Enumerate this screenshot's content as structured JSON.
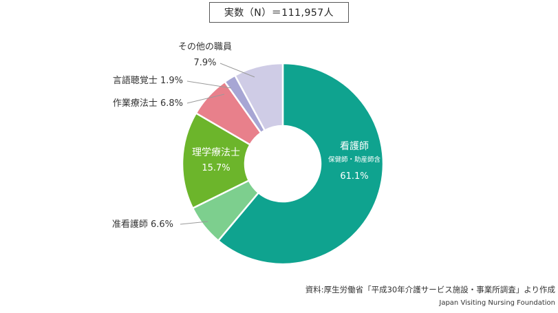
{
  "header": {
    "total_label": "実数（N）＝111,957人"
  },
  "chart_data": {
    "type": "pie",
    "donut": true,
    "title": "",
    "unit": "%",
    "slices": [
      {
        "name": "看護師",
        "sub": "保健師・助産師含",
        "value": 61.1,
        "value_label": "61.1%",
        "color": "#0fa38f",
        "label_color": "#ffffff"
      },
      {
        "name": "准看護師",
        "value": 6.6,
        "value_label": "6.6%",
        "color": "#7dcf8e",
        "label_color": "#333333"
      },
      {
        "name": "理学療法士",
        "value": 15.7,
        "value_label": "15.7%",
        "color": "#6cb52b",
        "label_color": "#ffffff"
      },
      {
        "name": "作業療法士",
        "value": 6.8,
        "value_label": "6.8%",
        "color": "#e8808b",
        "label_color": "#333333"
      },
      {
        "name": "言語聴覚士",
        "value": 1.9,
        "value_label": "1.9%",
        "color": "#a7a6d4",
        "label_color": "#333333"
      },
      {
        "name": "その他の職員",
        "value": 7.9,
        "value_label": "7.9%",
        "color": "#cfcce6",
        "label_color": "#333333"
      }
    ]
  },
  "source": {
    "ja": "資料:厚生労働省「平成30年介護サービス施設・事業所調査」より作成",
    "en": "Japan Visiting Nursing Foundation"
  }
}
